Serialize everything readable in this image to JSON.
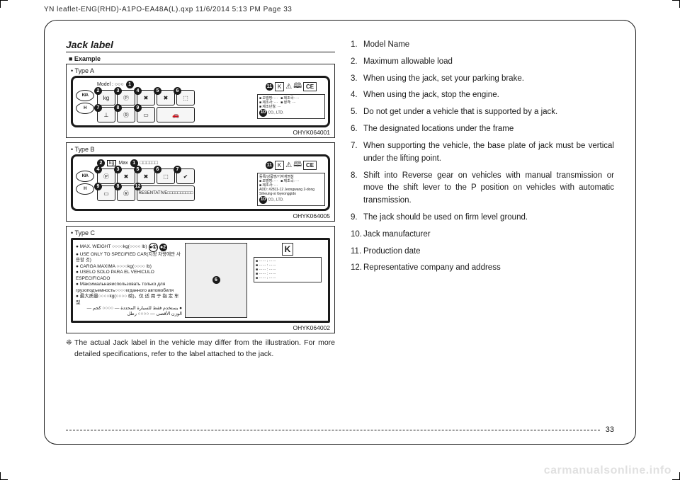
{
  "print_header": "YN leaflet-ENG(RHD)-A1PO-EA48A(L).qxp  11/6/2014  5:13 PM  Page 33",
  "section_title": "Jack label",
  "example_tag": "■ Example",
  "types": {
    "a": "• Type A",
    "b": "• Type B",
    "c": "• Type C"
  },
  "codes": {
    "a": "OHYK064001",
    "b": "OHYK064005",
    "c": "OHYK064002"
  },
  "label_a": {
    "model": "Model : ○○○",
    "coltd": "CO., LTD."
  },
  "label_b": {
    "max": "Max",
    "kg": "kg",
    "rep": "RESENTATIVE",
    "coltd": "CO., LTD."
  },
  "label_c": {
    "l1": "MAX. WEIGHT ○○○○kg(○○○○ lb)",
    "l2": "USE ONLY TO SPECIFIED CAR(지정 차량에만 사용할 것)",
    "l3": "CARGA MAXIMA ○○○○kg(○○○○ lb)",
    "l4": "USELO SOLO PARA EL VEHICULO ESPECIFICADO",
    "l5": "Максимальнаяиспользовать только для грузоподъемность○○○○кгданного автомобиля",
    "l6": "最大质量○○○○kg(○○○○ 磅)，仅 适 用 于 指 定 车 型",
    "l7": "يستخدم فقط للسيارة المحددة — ○○○○ كجم — الوزن الأقصى — ○○○○ رطل"
  },
  "cert": {
    "ce": "CE",
    "kc": "K"
  },
  "footnote": "The actual Jack label in the vehicle may differ from the illustration. For more detailed specifications, refer to the label attached to the jack.",
  "footnote_sym": "❈",
  "list": [
    {
      "n": "1.",
      "t": "Model Name"
    },
    {
      "n": "2.",
      "t": "Maximum allowable load"
    },
    {
      "n": "3.",
      "t": "When using the jack, set your parking brake."
    },
    {
      "n": "4.",
      "t": "When using the jack, stop the engine."
    },
    {
      "n": "5.",
      "t": "Do not get under a vehicle that is supported by a jack."
    },
    {
      "n": "6.",
      "t": "The designated locations under the frame"
    },
    {
      "n": "7.",
      "t": "When supporting the vehicle, the base plate of jack must be vertical under the lifting point."
    },
    {
      "n": "8.",
      "t": "Shift into Reverse gear on vehicles with manual transmission or move the shift lever to the P position on vehicles with automatic transmission."
    },
    {
      "n": "9.",
      "t": "The jack should be used on firm level ground."
    },
    {
      "n": "10.",
      "t": "Jack manufacturer"
    },
    {
      "n": "11.",
      "t": "Production date"
    },
    {
      "n": "12.",
      "t": "Representative company and address"
    }
  ],
  "page_number": "33",
  "watermark": "carmanualsonline.info",
  "starts": {
    "one": "①",
    "two": "②",
    "six": "⑥"
  }
}
